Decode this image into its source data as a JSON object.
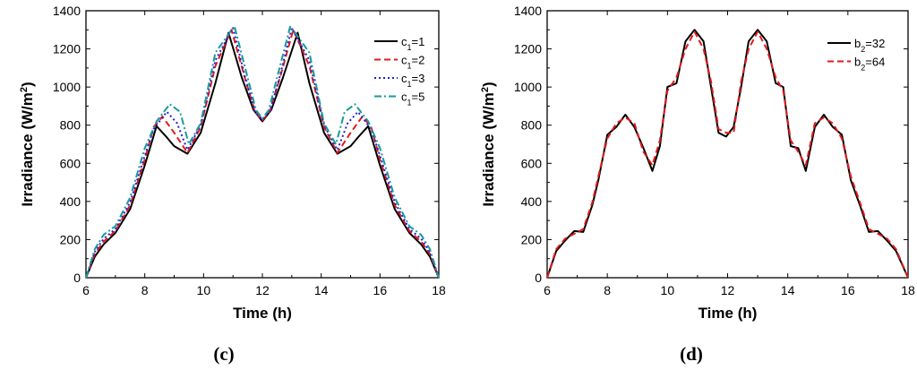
{
  "chart_data": [
    {
      "panel_label": "(c)",
      "type": "line",
      "xlabel": "Time (h)",
      "ylabel_main": "Irradiance (W/m",
      "ylabel_sup": "2",
      "ylabel_end": ")",
      "xlim": [
        6,
        18
      ],
      "ylim": [
        0,
        1400
      ],
      "xticks": [
        "6",
        "8",
        "10",
        "12",
        "14",
        "16",
        "18"
      ],
      "yticks": [
        "0",
        "200",
        "400",
        "600",
        "800",
        "1000",
        "1200",
        "1400"
      ],
      "legend_position": "top-right",
      "series": [
        {
          "name": "c1=1",
          "legend_base": "c",
          "legend_sub": "1",
          "legend_rest": "=1",
          "color": "#000000",
          "style": "solid",
          "x": [
            6,
            6.3,
            6.6,
            7,
            7.5,
            8,
            8.4,
            8.7,
            9,
            9.45,
            9.9,
            10.4,
            10.85,
            11.3,
            11.7,
            12,
            12.3,
            12.7,
            13.2,
            13.6,
            14.1,
            14.55,
            15,
            15.3,
            15.6,
            16,
            16.5,
            17,
            17.4,
            17.7,
            18
          ],
          "y": [
            0,
            110,
            175,
            235,
            360,
            590,
            795,
            745,
            690,
            650,
            760,
            1020,
            1285,
            1050,
            880,
            820,
            880,
            1050,
            1285,
            1020,
            760,
            650,
            690,
            745,
            795,
            590,
            360,
            235,
            175,
            110,
            0
          ]
        },
        {
          "name": "c1=2",
          "legend_base": "c",
          "legend_sub": "1",
          "legend_rest": "=2",
          "color": "#e31a1c",
          "style": "dash",
          "x": [
            6,
            6.3,
            6.6,
            7,
            7.5,
            8,
            8.3,
            8.6,
            9,
            9.45,
            9.9,
            10.4,
            10.95,
            11.4,
            11.75,
            12,
            12.25,
            12.6,
            13.05,
            13.6,
            14.1,
            14.55,
            15,
            15.4,
            15.7,
            16,
            16.5,
            17,
            17.4,
            17.7,
            18
          ],
          "y": [
            0,
            125,
            190,
            245,
            380,
            620,
            790,
            845,
            760,
            655,
            790,
            1110,
            1300,
            1050,
            870,
            825,
            870,
            1050,
            1300,
            1110,
            790,
            655,
            760,
            845,
            790,
            620,
            380,
            245,
            190,
            125,
            0
          ]
        },
        {
          "name": "c1=3",
          "legend_base": "c",
          "legend_sub": "1",
          "legend_rest": "=3",
          "color": "#1f1fd6",
          "style": "dot",
          "x": [
            6,
            6.3,
            6.6,
            7,
            7.5,
            8,
            8.3,
            8.75,
            9.1,
            9.45,
            9.9,
            10.4,
            11.0,
            11.4,
            11.75,
            12,
            12.25,
            12.6,
            13.0,
            13.6,
            14.1,
            14.55,
            14.9,
            15.25,
            15.7,
            16,
            16.5,
            17,
            17.4,
            17.7,
            18
          ],
          "y": [
            0,
            135,
            205,
            255,
            395,
            640,
            780,
            870,
            810,
            670,
            800,
            1140,
            1310,
            1060,
            870,
            830,
            870,
            1060,
            1310,
            1140,
            800,
            670,
            810,
            870,
            780,
            640,
            395,
            255,
            205,
            135,
            0
          ]
        },
        {
          "name": "c1=5",
          "legend_base": "c",
          "legend_sub": "1",
          "legend_rest": "=5",
          "color": "#1a9a9a",
          "style": "dashdot",
          "x": [
            6,
            6.3,
            6.6,
            7,
            7.5,
            8,
            8.4,
            8.85,
            9.2,
            9.5,
            9.9,
            10.4,
            11.05,
            11.45,
            11.78,
            12,
            12.22,
            12.55,
            12.95,
            13.6,
            14.1,
            14.5,
            14.8,
            15.15,
            15.6,
            16,
            16.5,
            17,
            17.4,
            17.7,
            18
          ],
          "y": [
            0,
            150,
            225,
            270,
            420,
            680,
            820,
            910,
            870,
            700,
            810,
            1180,
            1320,
            1080,
            880,
            835,
            880,
            1080,
            1320,
            1180,
            810,
            700,
            870,
            910,
            820,
            680,
            420,
            270,
            225,
            150,
            0
          ]
        }
      ]
    },
    {
      "panel_label": "(d)",
      "type": "line",
      "xlabel": "Time (h)",
      "ylabel_main": "Irradiance (W/m",
      "ylabel_sup": "2",
      "ylabel_end": ")",
      "xlim": [
        6,
        18
      ],
      "ylim": [
        0,
        1400
      ],
      "xticks": [
        "6",
        "8",
        "10",
        "12",
        "14",
        "16",
        "18"
      ],
      "yticks": [
        "0",
        "200",
        "400",
        "600",
        "800",
        "1000",
        "1200",
        "1400"
      ],
      "legend_position": "top-right",
      "series": [
        {
          "name": "b2=32",
          "legend_base": "b",
          "legend_sub": "2",
          "legend_rest": "=32",
          "color": "#000000",
          "style": "solid",
          "x": [
            6,
            6.3,
            6.6,
            6.9,
            7.2,
            7.5,
            7.7,
            8.0,
            8.3,
            8.6,
            8.9,
            9.2,
            9.5,
            9.75,
            10.0,
            10.3,
            10.6,
            10.9,
            11.2,
            11.45,
            11.7,
            11.95,
            12.2,
            12.45,
            12.7,
            13.0,
            13.3,
            13.6,
            13.85,
            14.1,
            14.35,
            14.6,
            14.9,
            15.2,
            15.5,
            15.8,
            16.1,
            16.4,
            16.7,
            17.0,
            17.3,
            17.6,
            18
          ],
          "y": [
            0,
            140,
            195,
            245,
            240,
            380,
            510,
            750,
            790,
            855,
            790,
            680,
            560,
            690,
            1000,
            1020,
            1240,
            1300,
            1240,
            1000,
            760,
            740,
            790,
            1000,
            1240,
            1300,
            1240,
            1020,
            1000,
            690,
            680,
            560,
            790,
            855,
            790,
            750,
            510,
            380,
            240,
            245,
            195,
            140,
            0
          ]
        },
        {
          "name": "b2=64",
          "legend_base": "b",
          "legend_sub": "2",
          "legend_rest": "=64",
          "color": "#e31a1c",
          "style": "dash",
          "x": [
            6,
            6.3,
            6.6,
            6.9,
            7.2,
            7.5,
            7.7,
            8.0,
            8.3,
            8.6,
            8.9,
            9.2,
            9.5,
            9.75,
            10.0,
            10.3,
            10.6,
            10.9,
            11.2,
            11.45,
            11.7,
            11.95,
            12.2,
            12.45,
            12.7,
            13.0,
            13.3,
            13.6,
            13.85,
            14.1,
            14.35,
            14.6,
            14.9,
            15.2,
            15.5,
            15.8,
            16.1,
            16.4,
            16.7,
            17.0,
            17.3,
            17.6,
            18
          ],
          "y": [
            0,
            150,
            205,
            230,
            255,
            395,
            530,
            730,
            810,
            840,
            810,
            660,
            590,
            720,
            980,
            1050,
            1200,
            1290,
            1200,
            1030,
            780,
            760,
            760,
            1030,
            1200,
            1290,
            1200,
            1050,
            980,
            720,
            660,
            590,
            810,
            840,
            810,
            730,
            530,
            395,
            255,
            230,
            205,
            150,
            0
          ]
        }
      ]
    }
  ]
}
